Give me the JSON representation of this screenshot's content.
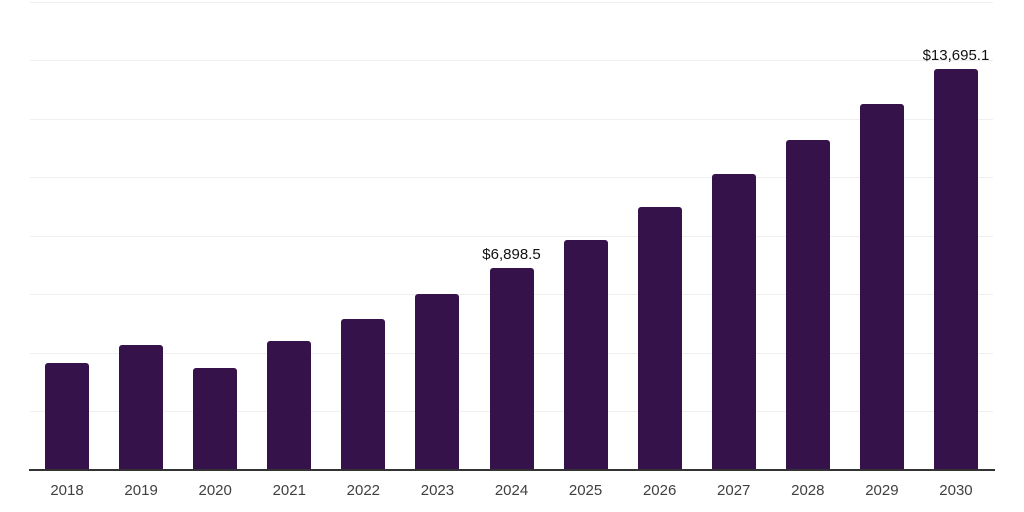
{
  "chart_data": {
    "type": "bar",
    "title": "",
    "xlabel": "",
    "ylabel": "",
    "categories": [
      "2018",
      "2019",
      "2020",
      "2021",
      "2022",
      "2023",
      "2024",
      "2025",
      "2026",
      "2027",
      "2028",
      "2029",
      "2030"
    ],
    "values": [
      3650,
      4250,
      3480,
      4400,
      5160,
      5990,
      6898.5,
      7870,
      8980,
      10100,
      11280,
      12500,
      13695.1
    ],
    "value_labels": [
      "",
      "",
      "",
      "",
      "",
      "",
      "$6,898.5",
      "",
      "",
      "",
      "",
      "",
      "$13,695.1"
    ],
    "ylim": [
      0,
      16000
    ],
    "gridline_interval": 2000,
    "grid": "horizontal",
    "legend_position": "none",
    "y_tick_labels_visible": false,
    "colors": {
      "bar": "#36124b",
      "axis_line": "#333333",
      "gridline": "#efefef",
      "x_tick_label": "#404040",
      "value_label": "#111111",
      "background": "#ffffff"
    }
  }
}
